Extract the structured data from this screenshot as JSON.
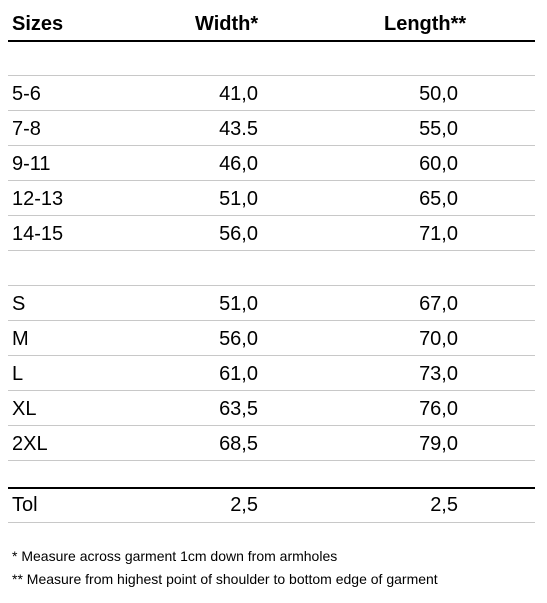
{
  "table": {
    "header": [
      "Sizes",
      "Width*",
      "Length**"
    ],
    "groups": [
      [
        [
          "5-6",
          "41,0",
          "50,0"
        ],
        [
          "7-8",
          "43.5",
          "55,0"
        ],
        [
          "9-11",
          "46,0",
          "60,0"
        ],
        [
          "12-13",
          "51,0",
          "65,0"
        ],
        [
          "14-15",
          "56,0",
          "71,0"
        ]
      ],
      [
        [
          "S",
          "51,0",
          "67,0"
        ],
        [
          "M",
          "56,0",
          "70,0"
        ],
        [
          "L",
          "61,0",
          "73,0"
        ],
        [
          "XL",
          "63,5",
          "76,0"
        ],
        [
          "2XL",
          "68,5",
          "79,0"
        ]
      ]
    ],
    "tolerance": [
      "Tol",
      "2,5",
      "2,5"
    ]
  },
  "footnotes": [
    "* Measure across garment 1cm down from armholes",
    "** Measure from highest point of shoulder to bottom edge of garment"
  ]
}
